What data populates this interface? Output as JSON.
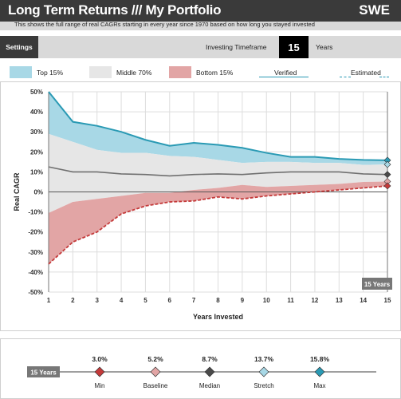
{
  "header": {
    "title": "Long Term Returns /// My Portfolio",
    "ticker": "SWE"
  },
  "subtitle": "This shows the full range of real CAGRs starting in every year since 1970 based on how long you stayed invested",
  "controls": {
    "settings_label": "Settings",
    "timeframe_label": "Investing Timeframe",
    "timeframe_value": "15",
    "timeframe_unit": "Years"
  },
  "legend": {
    "top": "Top 15%",
    "middle": "Middle 70%",
    "bottom": "Bottom 15%",
    "verified": "Verified",
    "estimated": "Estimated"
  },
  "colors": {
    "top_band": "#a8d8e6",
    "middle_band": "#e6e6e6",
    "bottom_band": "#e2a5a5",
    "top_line": "#2a9ab4",
    "median_line": "#707070",
    "bottom_line": "#c43a3a",
    "median_marker": "#4a4a4a"
  },
  "chart_data": {
    "type": "area",
    "xlabel": "Years Invested",
    "ylabel": "Real CAGR",
    "x": [
      1,
      2,
      3,
      4,
      5,
      6,
      7,
      8,
      9,
      10,
      11,
      12,
      13,
      14,
      15
    ],
    "ylim": [
      -50,
      50
    ],
    "y_ticks": [
      "50%",
      "40%",
      "30%",
      "20%",
      "10%",
      "0%",
      "-10%",
      "-20%",
      "-30%",
      "-40%",
      "-50%"
    ],
    "y_tick_values": [
      50,
      40,
      30,
      20,
      10,
      0,
      -10,
      -20,
      -30,
      -40,
      -50
    ],
    "grid": true,
    "series": [
      {
        "role": "max",
        "values": [
          50,
          35,
          33,
          30,
          26,
          23,
          24.5,
          23.5,
          22,
          19.5,
          17.5,
          17.5,
          16.5,
          16,
          15.8
        ]
      },
      {
        "role": "top15_lower",
        "values": [
          29,
          25,
          21,
          19.5,
          19.5,
          18,
          17.5,
          16,
          14.5,
          15,
          15,
          14.5,
          14.5,
          13.5,
          13.7
        ]
      },
      {
        "role": "median",
        "values": [
          12.5,
          10,
          10,
          9,
          8.7,
          8,
          8.7,
          9,
          8.7,
          9.5,
          10,
          10,
          10,
          9,
          8.7
        ]
      },
      {
        "role": "bottom15_upper",
        "values": [
          -10.5,
          -5,
          -3.5,
          -2,
          -0.5,
          -0.5,
          1,
          2,
          3.5,
          2.5,
          3,
          3.5,
          4,
          5,
          5.2
        ]
      },
      {
        "role": "min",
        "values": [
          -36,
          -25,
          -20,
          -11,
          -7,
          -5,
          -4.5,
          -2.5,
          -3.5,
          -2,
          -1,
          0,
          1,
          2,
          3.0
        ]
      }
    ],
    "end_label": "15 Years"
  },
  "summary": {
    "timeframe_tag": "15 Years",
    "items": [
      {
        "value": "3.0%",
        "label": "Min",
        "color": "#c43a3a"
      },
      {
        "value": "5.2%",
        "label": "Baseline",
        "color": "#e2a5a5"
      },
      {
        "value": "8.7%",
        "label": "Median",
        "color": "#4a4a4a"
      },
      {
        "value": "13.7%",
        "label": "Stretch",
        "color": "#a8d8e6"
      },
      {
        "value": "15.8%",
        "label": "Max",
        "color": "#2a9ab4"
      }
    ]
  }
}
